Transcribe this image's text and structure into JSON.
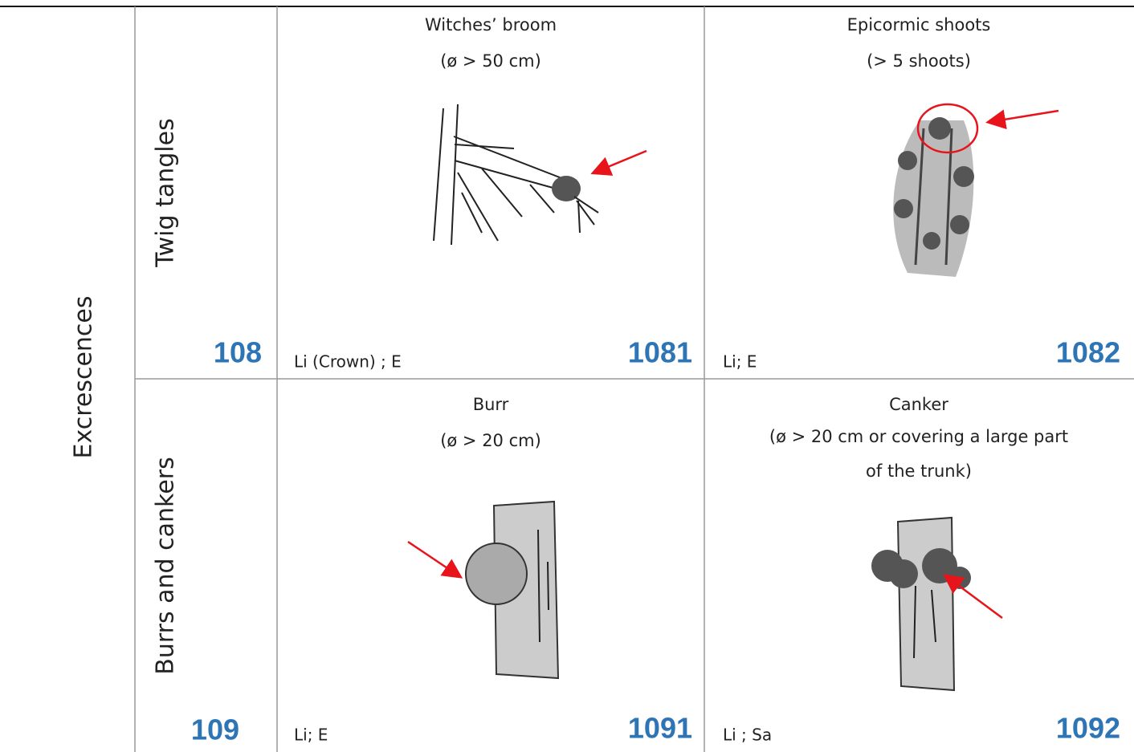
{
  "group": {
    "label": "Excrescences"
  },
  "rows": [
    {
      "label": "Twig tangles",
      "code": 108,
      "cells": [
        {
          "title": "Witches’ broom",
          "subtitle": [
            "(ø > 50 cm)"
          ],
          "note": "Li (Crown) ; E",
          "code": 1081
        },
        {
          "title": "Epicormic shoots",
          "subtitle": [
            "(> 5 shoots)"
          ],
          "note": "Li; E",
          "code": 1082
        }
      ]
    },
    {
      "label": "Burrs and cankers",
      "code": 109,
      "cells": [
        {
          "title": "Burr",
          "subtitle": [
            "(ø > 20 cm)"
          ],
          "note": "Li; E",
          "code": 1091
        },
        {
          "title": "Canker",
          "subtitle": [
            "(ø > 20 cm or covering a large part",
            "of the trunk)"
          ],
          "note": "Li ; Sa",
          "code": 1092
        }
      ]
    }
  ]
}
